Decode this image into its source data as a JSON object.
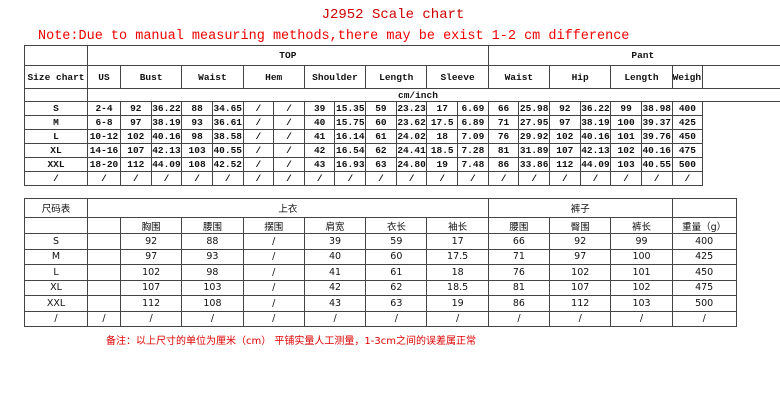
{
  "title": "J2952 Scale chart",
  "note": "Note:Due to manual measuring methods,there may be exist 1-2 cm difference",
  "table_en": {
    "size_label": "Size chart",
    "top_label": "TOP",
    "pant_label": "Pant",
    "unit_label": "cm/inch",
    "columns": [
      "US",
      "Bust",
      "Waist",
      "Hem",
      "Shoulder",
      "Length",
      "Sleeve",
      "Waist",
      "Hip",
      "Length",
      "Weight(g)"
    ],
    "rows": [
      [
        "S",
        "2-4",
        "92",
        "36.22",
        "88",
        "34.65",
        "/",
        "/",
        "39",
        "15.35",
        "59",
        "23.23",
        "17",
        "6.69",
        "66",
        "25.98",
        "92",
        "36.22",
        "99",
        "38.98",
        "400"
      ],
      [
        "M",
        "6-8",
        "97",
        "38.19",
        "93",
        "36.61",
        "/",
        "/",
        "40",
        "15.75",
        "60",
        "23.62",
        "17.5",
        "6.89",
        "71",
        "27.95",
        "97",
        "38.19",
        "100",
        "39.37",
        "425"
      ],
      [
        "L",
        "10-12",
        "102",
        "40.16",
        "98",
        "38.58",
        "/",
        "/",
        "41",
        "16.14",
        "61",
        "24.02",
        "18",
        "7.09",
        "76",
        "29.92",
        "102",
        "40.16",
        "101",
        "39.76",
        "450"
      ],
      [
        "XL",
        "14-16",
        "107",
        "42.13",
        "103",
        "40.55",
        "/",
        "/",
        "42",
        "16.54",
        "62",
        "24.41",
        "18.5",
        "7.28",
        "81",
        "31.89",
        "107",
        "42.13",
        "102",
        "40.16",
        "475"
      ],
      [
        "XXL",
        "18-20",
        "112",
        "44.09",
        "108",
        "42.52",
        "/",
        "/",
        "43",
        "16.93",
        "63",
        "24.80",
        "19",
        "7.48",
        "86",
        "33.86",
        "112",
        "44.09",
        "103",
        "40.55",
        "500"
      ],
      [
        "/",
        "/",
        "/",
        "/",
        "/",
        "/",
        "/",
        "/",
        "/",
        "/",
        "/",
        "/",
        "/",
        "/",
        "/",
        "/",
        "/",
        "/",
        "/",
        "/",
        "/"
      ]
    ]
  },
  "table_cn": {
    "size_label": "尺码表",
    "top_label": "上衣",
    "pant_label": "裤子",
    "columns": [
      "胸围",
      "腰围",
      "摆围",
      "肩宽",
      "衣长",
      "袖长",
      "腰围",
      "臀围",
      "裤长",
      "重量（g）"
    ],
    "rows": [
      [
        "S",
        "",
        "92",
        "88",
        "/",
        "39",
        "59",
        "17",
        "66",
        "92",
        "99",
        "400"
      ],
      [
        "M",
        "",
        "97",
        "93",
        "/",
        "40",
        "60",
        "17.5",
        "71",
        "97",
        "100",
        "425"
      ],
      [
        "L",
        "",
        "102",
        "98",
        "/",
        "41",
        "61",
        "18",
        "76",
        "102",
        "101",
        "450"
      ],
      [
        "XL",
        "",
        "107",
        "103",
        "/",
        "42",
        "62",
        "18.5",
        "81",
        "107",
        "102",
        "475"
      ],
      [
        "XXL",
        "",
        "112",
        "108",
        "/",
        "43",
        "63",
        "19",
        "86",
        "112",
        "103",
        "500"
      ],
      [
        "/",
        "/",
        "/",
        "/",
        "/",
        "/",
        "/",
        "/",
        "/",
        "/",
        "/",
        "/"
      ]
    ]
  },
  "footer_note": "备注：以上尺寸的单位为厘米（cm）   平铺实量人工测量，1-3cm之间的误差属正常"
}
